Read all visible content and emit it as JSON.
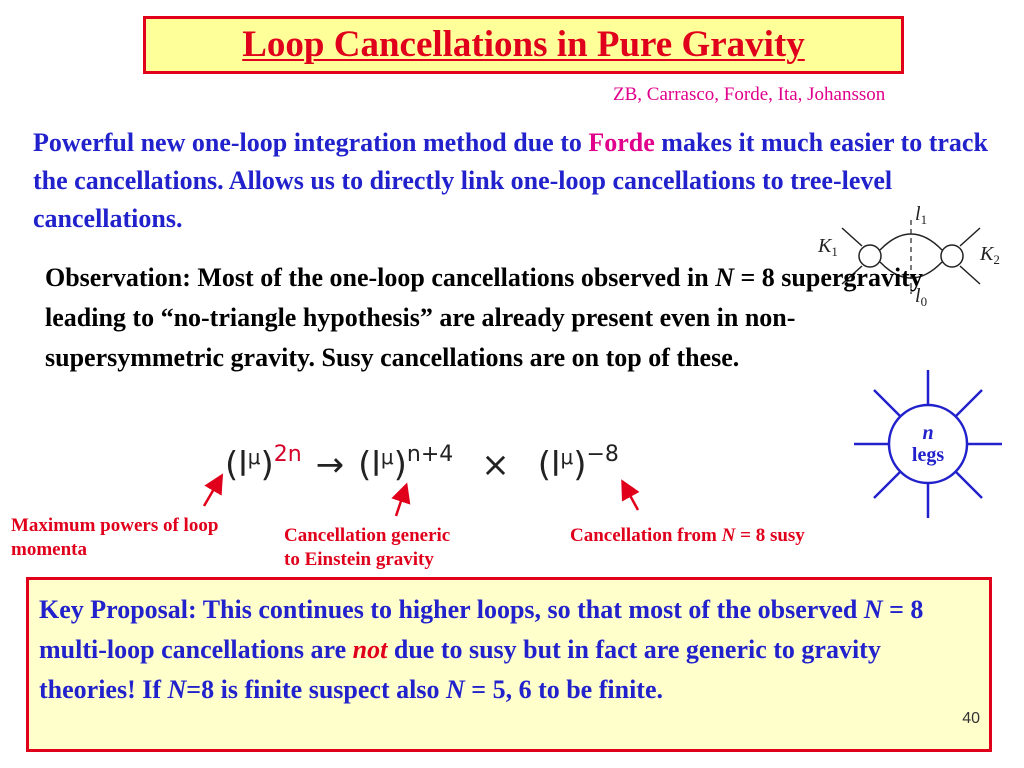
{
  "title": "Loop Cancellations in Pure Gravity",
  "authors": "ZB, Carrasco, Forde,  Ita, Johansson",
  "intro": {
    "part1": "Powerful new one-loop integration method due to ",
    "highlight": "Forde",
    "part2": " makes it much easier to track the cancellations.  Allows us to directly link one-loop cancellations to tree-level cancellations."
  },
  "observation": {
    "part1": "Observation: Most of the one-loop cancellations observed in ",
    "n": "N",
    "part2": " = 8 supergravity leading to “no-triangle hypothesis” are already present even in non-supersymmetric gravity.  Susy cancellations are on top of these."
  },
  "formula": {
    "base": "(l",
    "mu": "μ",
    "close": ")",
    "exp1": "2n",
    "arrow": "→",
    "exp2": "n+4",
    "times": "×",
    "exp3": "−8"
  },
  "annotations": {
    "max_powers": "Maximum powers of loop momenta",
    "generic_line1": "Cancellation generic",
    "generic_line2": "to Einstein gravity",
    "susy_pre": "Cancellation from ",
    "susy_n": "N",
    "susy_post": " = 8 susy"
  },
  "diagram": {
    "l1": "l1",
    "l0": "l0",
    "k1": "K1",
    "k2": "K2"
  },
  "vertex": {
    "n": "n",
    "legs": "legs"
  },
  "proposal": {
    "part1": "Key Proposal:  This continues to higher loops, so that most of the observed ",
    "n1": "N",
    "part2": " = 8 multi-loop cancellations are ",
    "not": "not",
    "part3": " due to susy but in fact are generic to gravity theories! If ",
    "n2": "N",
    "part4": "=8 is finite suspect also ",
    "n3": "N",
    "part5": " = 5, 6 to be finite."
  },
  "page_number": "40",
  "colors": {
    "title_red": "#e0001b",
    "title_bg": "#ffff99",
    "body_blue": "#2222cc",
    "highlight_magenta": "#e0008c",
    "proposal_bg": "#ffffcc"
  }
}
